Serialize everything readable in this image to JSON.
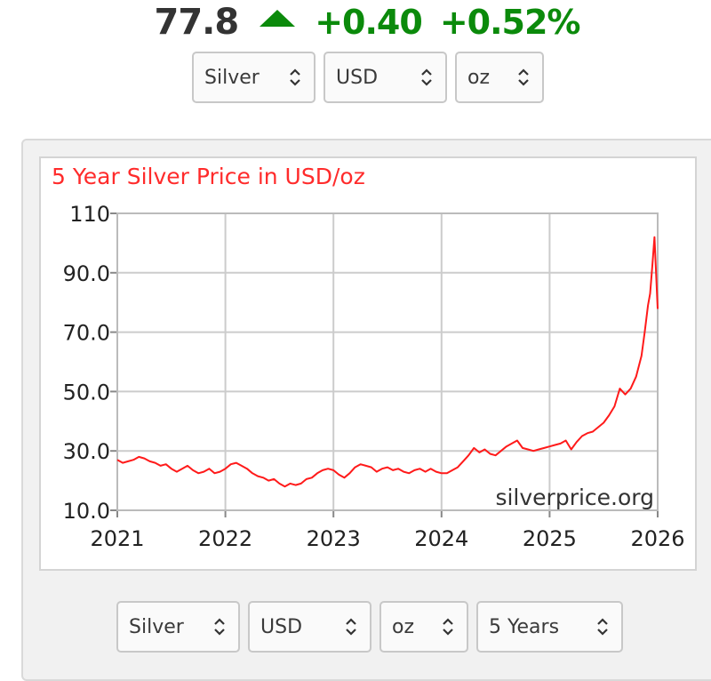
{
  "quote": {
    "price": "77.8",
    "change": "+0.40",
    "change_pct": "+0.52%",
    "direction_icon": "triangle-up-icon",
    "up_color": "#0b8a0b"
  },
  "top_selects": {
    "metal": "Silver",
    "currency": "USD",
    "unit": "oz"
  },
  "bottom_selects": {
    "metal": "Silver",
    "currency": "USD",
    "unit": "oz",
    "period": "5 Years"
  },
  "chart_data": {
    "type": "line",
    "title": "5 Year Silver Price in USD/oz",
    "watermark": "silverprice.org",
    "xlabel": "",
    "ylabel": "",
    "xlim": [
      2021,
      2026
    ],
    "ylim": [
      10,
      110
    ],
    "x_ticks": [
      "2021",
      "2022",
      "2023",
      "2024",
      "2025",
      "2026"
    ],
    "y_ticks": [
      "10.0",
      "30.0",
      "50.0",
      "70.0",
      "90.0",
      "110"
    ],
    "grid": true,
    "line_color": "#ff1a1a",
    "series": [
      {
        "x": [
          2021.0,
          2021.05,
          2021.1,
          2021.15,
          2021.2,
          2021.25,
          2021.3,
          2021.35,
          2021.4,
          2021.45,
          2021.5,
          2021.55,
          2021.6,
          2021.65,
          2021.7,
          2021.75,
          2021.8,
          2021.85,
          2021.9,
          2021.95,
          2022.0,
          2022.05,
          2022.1,
          2022.15,
          2022.2,
          2022.25,
          2022.3,
          2022.35,
          2022.4,
          2022.45,
          2022.5,
          2022.55,
          2022.6,
          2022.65,
          2022.7,
          2022.75,
          2022.8,
          2022.85,
          2022.9,
          2022.95,
          2023.0,
          2023.05,
          2023.1,
          2023.15,
          2023.2,
          2023.25,
          2023.3,
          2023.35,
          2023.4,
          2023.45,
          2023.5,
          2023.55,
          2023.6,
          2023.65,
          2023.7,
          2023.75,
          2023.8,
          2023.85,
          2023.9,
          2023.95,
          2024.0,
          2024.05,
          2024.1,
          2024.15,
          2024.2,
          2024.25,
          2024.3,
          2024.35,
          2024.4,
          2024.45,
          2024.5,
          2024.55,
          2024.6,
          2024.65,
          2024.7,
          2024.75,
          2024.8,
          2024.85,
          2024.9,
          2024.95,
          2025.0,
          2025.05,
          2025.1,
          2025.15,
          2025.2,
          2025.25,
          2025.3,
          2025.35,
          2025.4,
          2025.45,
          2025.5,
          2025.55,
          2025.6,
          2025.65,
          2025.7,
          2025.75,
          2025.8,
          2025.85,
          2025.88,
          2025.91,
          2025.93,
          2025.95,
          2025.97,
          2026.0
        ],
        "values": [
          27.0,
          26.0,
          26.5,
          27.0,
          28.0,
          27.5,
          26.5,
          26.0,
          25.0,
          25.5,
          24.0,
          23.0,
          24.0,
          25.0,
          23.5,
          22.5,
          23.0,
          24.0,
          22.5,
          23.0,
          24.0,
          25.5,
          26.0,
          25.0,
          24.0,
          22.5,
          21.5,
          21.0,
          20.0,
          20.5,
          19.0,
          18.0,
          19.0,
          18.5,
          19.0,
          20.5,
          21.0,
          22.5,
          23.5,
          24.0,
          23.5,
          22.0,
          21.0,
          22.5,
          24.5,
          25.5,
          25.0,
          24.5,
          23.0,
          24.0,
          24.5,
          23.5,
          24.0,
          23.0,
          22.5,
          23.5,
          24.0,
          23.0,
          24.0,
          23.0,
          22.5,
          22.5,
          23.5,
          24.5,
          26.5,
          28.5,
          31.0,
          29.5,
          30.5,
          29.0,
          28.5,
          30.0,
          31.5,
          32.5,
          33.5,
          31.0,
          30.5,
          30.0,
          30.5,
          31.0,
          31.5,
          32.0,
          32.5,
          33.5,
          30.5,
          33.0,
          35.0,
          36.0,
          36.5,
          38.0,
          39.5,
          42.0,
          45.0,
          51.0,
          49.0,
          51.0,
          55.0,
          62.0,
          70.0,
          79.0,
          83.0,
          92.0,
          102.0,
          77.8
        ]
      }
    ]
  }
}
